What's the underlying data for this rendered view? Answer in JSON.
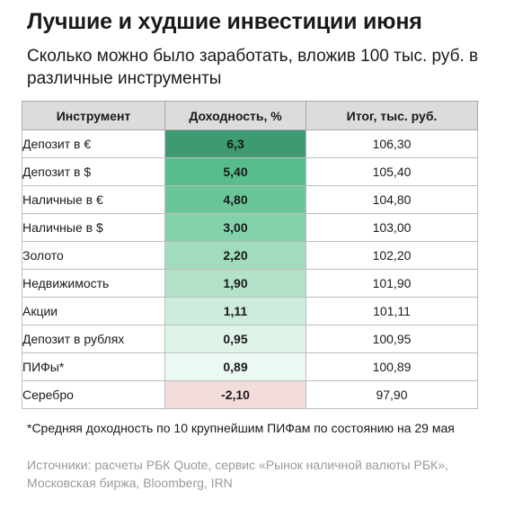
{
  "title": "Лучшие и худшие инвестиции июня",
  "subtitle": "Сколько можно было заработать, вложив 100 тыс. руб. в различные инструменты",
  "table": {
    "headers": [
      "Инструмент",
      "Доходность, %",
      "Итог, тыс. руб."
    ],
    "rows": [
      {
        "instrument": "Депозит в €",
        "yield": "6,3",
        "total": "106,30",
        "color": "#3d9a71"
      },
      {
        "instrument": "Депозит в $",
        "yield": "5,40",
        "total": "105,40",
        "color": "#57bd8c"
      },
      {
        "instrument": "Наличные в €",
        "yield": "4,80",
        "total": "104,80",
        "color": "#69c699"
      },
      {
        "instrument": "Наличные в $",
        "yield": "3,00",
        "total": "103,00",
        "color": "#83d2ab"
      },
      {
        "instrument": "Золото",
        "yield": "2,20",
        "total": "102,20",
        "color": "#a1dcbf"
      },
      {
        "instrument": "Недвижимость",
        "yield": "1,90",
        "total": "101,90",
        "color": "#b2e2ca"
      },
      {
        "instrument": "Акции",
        "yield": "1,11",
        "total": "101,11",
        "color": "#cdecdc"
      },
      {
        "instrument": "Депозит в рублях",
        "yield": "0,95",
        "total": "100,95",
        "color": "#e0f3e9"
      },
      {
        "instrument": "ПИФы*",
        "yield": "0,89",
        "total": "100,89",
        "color": "#ecf8f2"
      },
      {
        "instrument": "Серебро",
        "yield": "-2,10",
        "total": "97,90",
        "color": "#f2dcdc"
      }
    ]
  },
  "note": "*Средняя доходность по 10 крупнейшим ПИФам по состоянию на 29 мая",
  "sources": "Источники: расчеты РБК Quote, сервис «Рынок наличной валюты РБК», Московская биржа, Bloomberg, IRN"
}
